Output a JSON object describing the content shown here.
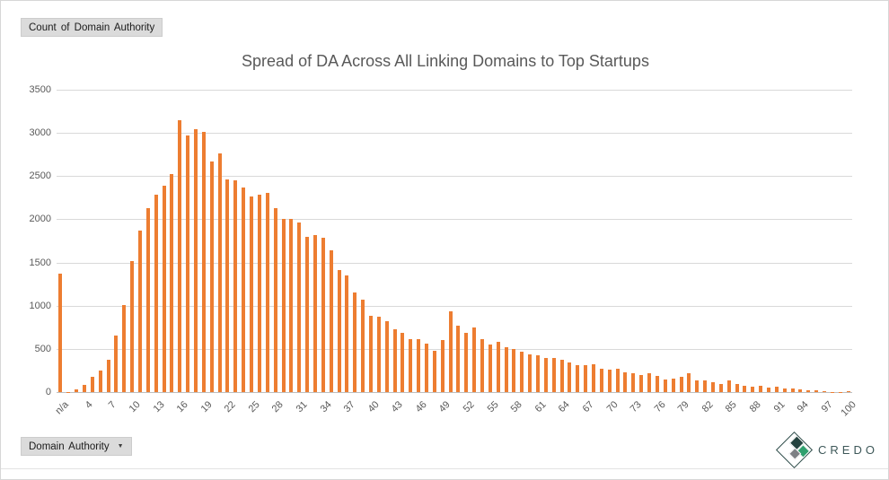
{
  "pivot": {
    "value_field_label": "Count of Domain Authority",
    "axis_field_label": "Domain Authority",
    "dropdown_icon": "▼"
  },
  "chart_data": {
    "type": "bar",
    "title": "Spread of DA Across All Linking Domains to Top Startups",
    "xlabel": "",
    "ylabel": "",
    "ylim": [
      0,
      3500
    ],
    "ytick_step": 500,
    "yticks": [
      0,
      500,
      1000,
      1500,
      2000,
      2500,
      3000,
      3500
    ],
    "grid": true,
    "legend": "none",
    "xlabel_every": 3,
    "categories": [
      "n/a",
      "2",
      "3",
      "4",
      "5",
      "6",
      "7",
      "8",
      "9",
      "10",
      "11",
      "12",
      "13",
      "14",
      "15",
      "16",
      "17",
      "18",
      "19",
      "20",
      "21",
      "22",
      "23",
      "24",
      "25",
      "26",
      "27",
      "28",
      "29",
      "30",
      "31",
      "32",
      "33",
      "34",
      "35",
      "36",
      "37",
      "38",
      "39",
      "40",
      "41",
      "42",
      "43",
      "44",
      "45",
      "46",
      "47",
      "48",
      "49",
      "50",
      "51",
      "52",
      "53",
      "54",
      "55",
      "56",
      "57",
      "58",
      "59",
      "60",
      "61",
      "62",
      "63",
      "64",
      "65",
      "66",
      "67",
      "68",
      "69",
      "70",
      "71",
      "72",
      "73",
      "74",
      "75",
      "76",
      "77",
      "78",
      "79",
      "80",
      "81",
      "82",
      "83",
      "84",
      "85",
      "86",
      "87",
      "88",
      "89",
      "90",
      "91",
      "92",
      "93",
      "94",
      "95",
      "96",
      "97",
      "98",
      "99",
      "100"
    ],
    "values": [
      1370,
      5,
      35,
      80,
      180,
      250,
      370,
      650,
      1010,
      1520,
      1870,
      2130,
      2280,
      2390,
      2520,
      3150,
      2970,
      3040,
      3010,
      2670,
      2760,
      2460,
      2450,
      2370,
      2260,
      2290,
      2310,
      2130,
      2000,
      2000,
      1960,
      1800,
      1820,
      1790,
      1640,
      1410,
      1350,
      1150,
      1075,
      885,
      870,
      825,
      725,
      690,
      615,
      615,
      565,
      480,
      605,
      930,
      765,
      690,
      745,
      610,
      555,
      585,
      520,
      495,
      470,
      440,
      425,
      400,
      390,
      370,
      345,
      310,
      315,
      325,
      265,
      260,
      275,
      225,
      215,
      195,
      220,
      190,
      150,
      160,
      175,
      220,
      140,
      130,
      115,
      95,
      140,
      90,
      70,
      60,
      70,
      55,
      60,
      45,
      45,
      35,
      20,
      18,
      15,
      5,
      4,
      15
    ]
  },
  "colors": {
    "bar": "#ED7D31",
    "grid": "#D9D9D9",
    "axis_line": "#BFBFBF",
    "text": "#595959",
    "button_bg": "#DBDBDB",
    "logo_outline": "#2B4A47",
    "logo_dark": "#24433F",
    "logo_green": "#2FA06E",
    "logo_gray": "#7D8084"
  },
  "logo": {
    "text": "CREDO"
  }
}
